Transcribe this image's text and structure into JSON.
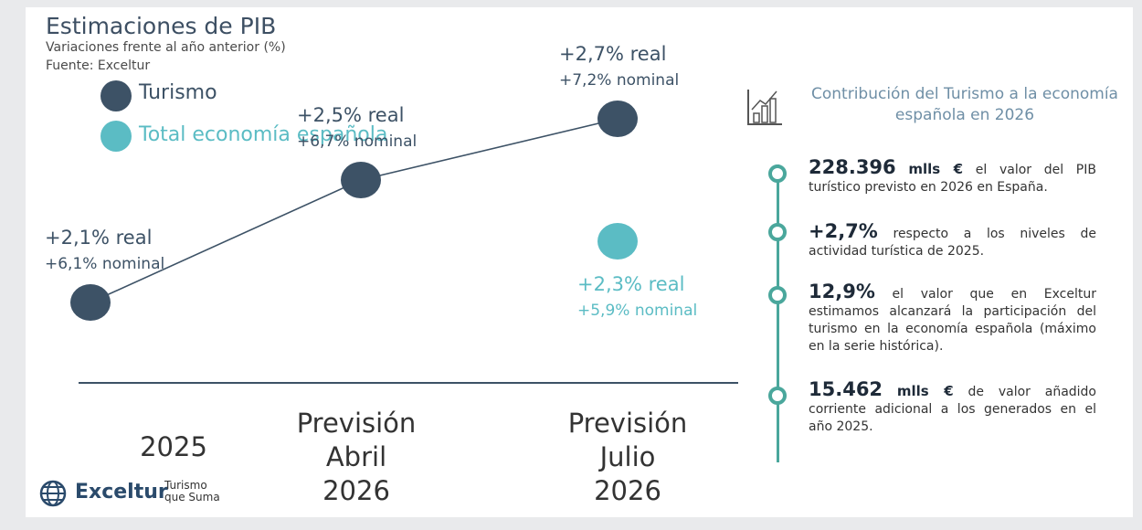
{
  "header": {
    "title": "Estimaciones de PIB",
    "subtitle": "Variaciones frente al año anterior (%)",
    "source": "Fuente: Exceltur"
  },
  "legend": [
    {
      "label": "Turismo",
      "color": "#3d5266"
    },
    {
      "label": "Total economía española",
      "color": "#5bbcc4"
    }
  ],
  "chart_data": {
    "type": "line",
    "categories": [
      "2025",
      "Previsión Abril 2026",
      "Previsión Julio 2026"
    ],
    "category_lines": [
      [
        "2025"
      ],
      [
        "Previsión",
        "Abril",
        "2026"
      ],
      [
        "Previsión",
        "Julio",
        "2026"
      ]
    ],
    "series": [
      {
        "name": "Turismo",
        "color": "#3d5266",
        "values": [
          2.1,
          2.5,
          2.7
        ],
        "labels_real": [
          "+2,1% real",
          "+2,5% real",
          "+2,7% real"
        ],
        "labels_nominal": [
          "+6,1% nominal",
          "+6,7% nominal",
          "+7,2% nominal"
        ]
      },
      {
        "name": "Total economía española",
        "color": "#5bbcc4",
        "values": [
          null,
          null,
          2.3
        ],
        "labels_real": [
          null,
          null,
          "+2,3% real"
        ],
        "labels_nominal": [
          null,
          null,
          "+5,9% nominal"
        ]
      }
    ],
    "ylim": [
      2.0,
      2.9
    ]
  },
  "panel": {
    "icon": "bar-chart-icon",
    "title": "Contribución del Turismo a la economía española en 2026",
    "items": [
      {
        "big": "228.396",
        "unit": "mlls €",
        "text": " el valor del PIB turístico previsto en 2026 en España."
      },
      {
        "big": "+2,7%",
        "unit": "",
        "text": " respecto a los niveles de actividad turística de 2025."
      },
      {
        "big": "12,9%",
        "unit": "",
        "text": " el valor que en Exceltur estimamos alcanzará la participación del turismo en la economía española (máximo en la serie histórica)."
      },
      {
        "big": "15.462",
        "unit": "mlls €",
        "text": " de valor añadido corriente adicional a los generados en el año 2025."
      }
    ]
  },
  "footer": {
    "logo": "Exceltur",
    "tagline": "Turismo que Suma",
    "logo_icon": "globe-icon"
  }
}
